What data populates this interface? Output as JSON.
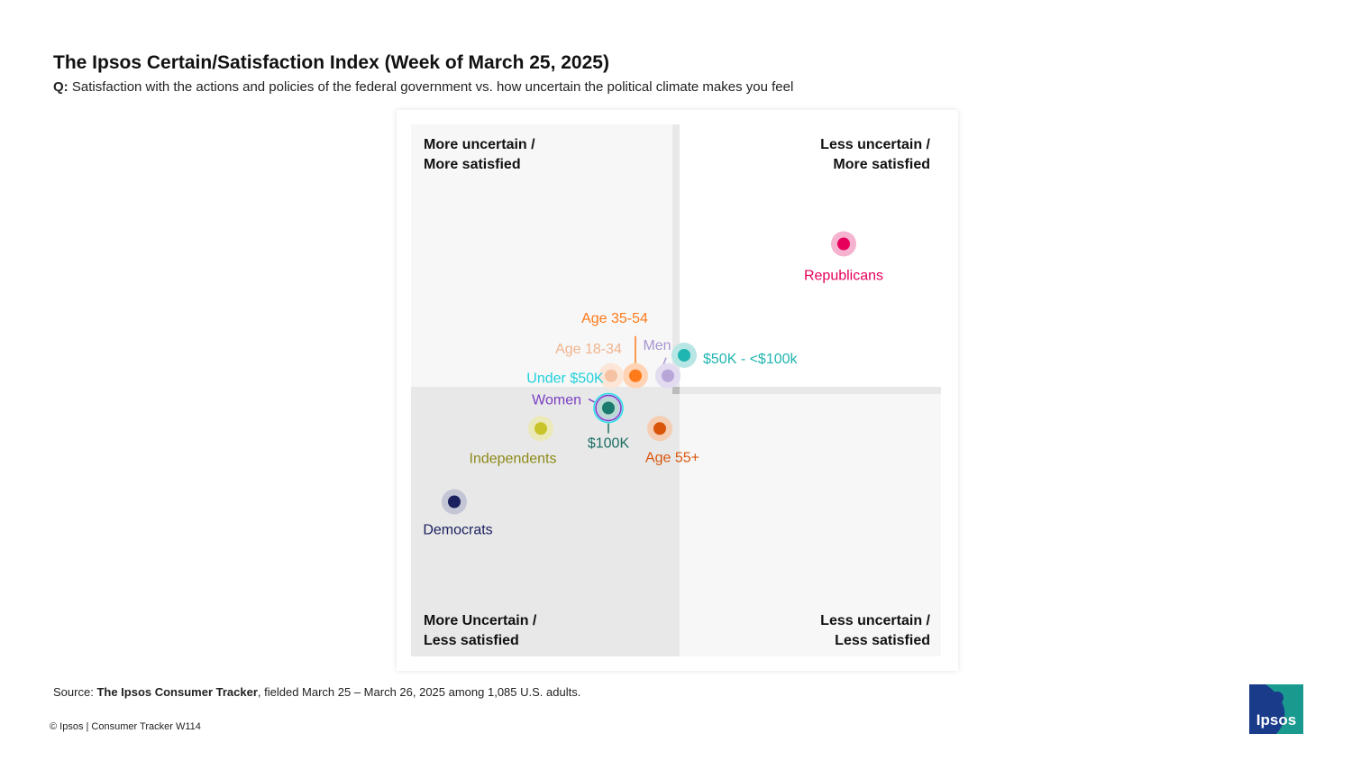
{
  "header": {
    "title": "The Ipsos Certain/Satisfaction Index (Week of March 25, 2025)",
    "question_prefix": "Q:",
    "question": "Satisfaction with the actions and policies of the federal government vs. how uncertain the political climate makes you feel"
  },
  "quadrants": {
    "top_left": [
      "More uncertain /",
      "More satisfied"
    ],
    "top_right": [
      "Less uncertain /",
      "More satisfied"
    ],
    "bottom_left": [
      "More Uncertain /",
      "Less satisfied"
    ],
    "bottom_right": [
      "Less uncertain /",
      "Less satisfied"
    ]
  },
  "chart_data": {
    "type": "scatter",
    "title": "The Ipsos Certain/Satisfaction Index (Week of March 25, 2025)",
    "xlabel": "",
    "ylabel": "",
    "points": [
      {
        "name": "Republicans",
        "x": 0.62,
        "y": 0.5,
        "color": "#e6005c",
        "halo": "#f5b3cf"
      },
      {
        "name": "$50K - <$100k",
        "x": 0.03,
        "y": 0.12,
        "color": "#1fb5b0",
        "halo": "#b7e6e4"
      },
      {
        "name": "Men",
        "x": -0.03,
        "y": 0.05,
        "color": "#b8a6d9",
        "halo": "#e3dbf0"
      },
      {
        "name": "Age 35-54",
        "x": -0.15,
        "y": 0.05,
        "color": "#ff7a1a",
        "halo": "#ffd3b3"
      },
      {
        "name": "Age 18-34",
        "x": -0.24,
        "y": 0.05,
        "color": "#f5c3a3",
        "halo": "#fbe6d8"
      },
      {
        "name": "Under $50K",
        "x": -0.25,
        "y": -0.06,
        "color": "#2ee0e8",
        "halo": "#bff4f6"
      },
      {
        "name": "Women",
        "x": -0.25,
        "y": -0.06,
        "color": "#7a3fc4",
        "halo": "#d6c4ee"
      },
      {
        "name": "$100K",
        "x": -0.25,
        "y": -0.06,
        "color": "#1a7a6e",
        "halo": "#b9d9d4"
      },
      {
        "name": "Age 55+",
        "x": -0.06,
        "y": -0.13,
        "color": "#d9550a",
        "halo": "#f5cdb3"
      },
      {
        "name": "Independents",
        "x": -0.5,
        "y": -0.13,
        "color": "#c9c42a",
        "halo": "#ece9b8"
      },
      {
        "name": "Democrats",
        "x": -0.82,
        "y": -0.38,
        "color": "#1a1f5e",
        "halo": "#c4c6d6"
      }
    ],
    "label_colors": {
      "Republicans": "#e6005c",
      "$50K - <$100k": "#1fb5b0",
      "Men": "#a895cf",
      "Age 35-54": "#ff7a1a",
      "Age 18-34": "#f0b48e",
      "Under $50K": "#21d1db",
      "Women": "#7a3fc4",
      "$100K": "#1a6e64",
      "Age 55+": "#d9550a",
      "Independents": "#8c8a1a",
      "Democrats": "#1a1f5e"
    },
    "quadrant_colors": {
      "top_left": "#f7f7f7",
      "top_right": "#ffffff",
      "bottom_left": "#e8e8e8",
      "bottom_right": "#f7f7f7",
      "axis": "#e8e8e8"
    }
  },
  "footer": {
    "source_prefix": "Source:",
    "source_bold": "The Ipsos Consumer Tracker",
    "source_rest": ", fielded March 25 – March 26, 2025 among 1,085 U.S. adults.",
    "copyright": "© Ipsos | Consumer Tracker W114",
    "logo_text": "Ipsos",
    "logo_color": "#1a9a8f",
    "logo_dark": "#1a3a8a"
  }
}
